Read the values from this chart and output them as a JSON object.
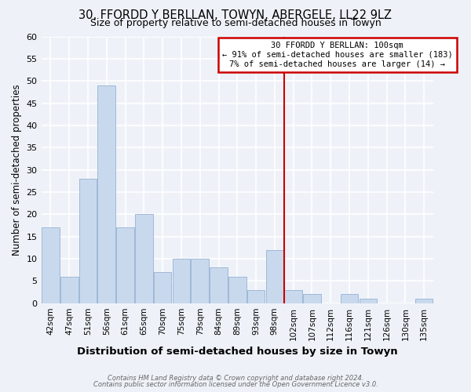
{
  "title": "30, FFORDD Y BERLLAN, TOWYN, ABERGELE, LL22 9LZ",
  "subtitle": "Size of property relative to semi-detached houses in Towyn",
  "xlabel": "Distribution of semi-detached houses by size in Towyn",
  "ylabel": "Number of semi-detached properties",
  "bin_labels": [
    "42sqm",
    "47sqm",
    "51sqm",
    "56sqm",
    "61sqm",
    "65sqm",
    "70sqm",
    "75sqm",
    "79sqm",
    "84sqm",
    "89sqm",
    "93sqm",
    "98sqm",
    "102sqm",
    "107sqm",
    "112sqm",
    "116sqm",
    "121sqm",
    "126sqm",
    "130sqm",
    "135sqm"
  ],
  "bar_heights": [
    17,
    6,
    28,
    49,
    17,
    20,
    7,
    10,
    10,
    8,
    6,
    3,
    12,
    3,
    2,
    0,
    2,
    1,
    0,
    0,
    1
  ],
  "bar_color": "#c8d9ed",
  "bar_edge_color": "#a0b8d8",
  "vline_x_index": 13,
  "vline_color": "#cc0000",
  "annotation_title": "30 FFORDD Y BERLLAN: 100sqm",
  "annotation_line1": "← 91% of semi-detached houses are smaller (183)",
  "annotation_line2": "7% of semi-detached houses are larger (14) →",
  "ylim": [
    0,
    60
  ],
  "yticks": [
    0,
    5,
    10,
    15,
    20,
    25,
    30,
    35,
    40,
    45,
    50,
    55,
    60
  ],
  "footer1": "Contains HM Land Registry data © Crown copyright and database right 2024.",
  "footer2": "Contains public sector information licensed under the Open Government Licence v3.0.",
  "background_color": "#eef2f8",
  "grid_color": "#ffffff"
}
